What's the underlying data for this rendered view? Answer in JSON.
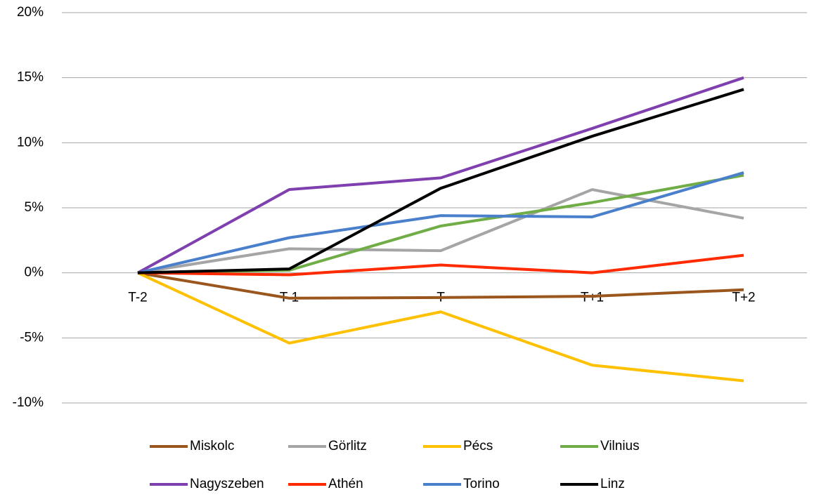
{
  "chart_data": {
    "type": "line",
    "categories": [
      "T-2",
      "T-1",
      "T",
      "T+1",
      "T+2"
    ],
    "series": [
      {
        "name": "Miskolc",
        "color": "#9a561c",
        "values": [
          0,
          -1.95,
          -1.9,
          -1.8,
          -1.3
        ]
      },
      {
        "name": "Görlitz",
        "color": "#a5a5a5",
        "values": [
          0,
          1.85,
          1.7,
          6.4,
          4.2
        ]
      },
      {
        "name": "Pécs",
        "color": "#ffc000",
        "values": [
          0,
          -5.4,
          -3.0,
          -7.1,
          -8.3
        ]
      },
      {
        "name": "Vilnius",
        "color": "#70ad47",
        "values": [
          0,
          0.2,
          3.6,
          5.4,
          7.5
        ]
      },
      {
        "name": "Nagyszeben",
        "color": "#7f3fae",
        "values": [
          0,
          6.4,
          7.3,
          11.1,
          15.0
        ]
      },
      {
        "name": "Athén",
        "color": "#ff2a00",
        "values": [
          0,
          -0.15,
          0.6,
          0,
          1.35
        ]
      },
      {
        "name": "Torino",
        "color": "#4a7fcc",
        "values": [
          0,
          2.7,
          4.4,
          4.3,
          7.7
        ]
      },
      {
        "name": "Linz",
        "color": "#000000",
        "values": [
          0,
          0.3,
          6.5,
          10.5,
          14.1
        ]
      }
    ],
    "ylim": [
      -10,
      20
    ],
    "yticks": [
      {
        "value": -10,
        "label": "-10%"
      },
      {
        "value": -5,
        "label": "-5%"
      },
      {
        "value": 0,
        "label": "0%"
      },
      {
        "value": 5,
        "label": "5%"
      },
      {
        "value": 10,
        "label": "10%"
      },
      {
        "value": 15,
        "label": "15%"
      },
      {
        "value": 20,
        "label": "20%"
      }
    ],
    "grid": true
  }
}
